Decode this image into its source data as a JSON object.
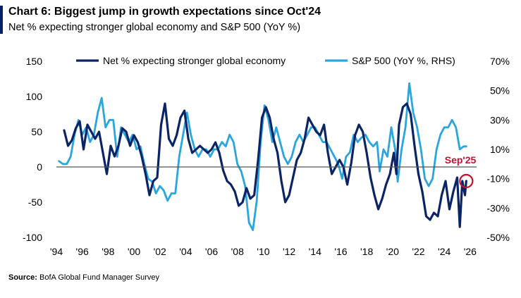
{
  "title": "Chart 6: Biggest jump in growth expectations since Oct'24",
  "subtitle": "Net % expecting stronger global economy and S&P 500 (YoY %)",
  "source_label": "Source:",
  "source_text": "BofA Global Fund Manager Survey",
  "annotation": {
    "label": "Sep'25",
    "x": 2025.7,
    "y": -20,
    "color": "#c8102e"
  },
  "colors": {
    "series1": "#0a2466",
    "series2": "#2aa6df",
    "zero_line": "#555555"
  },
  "chart_data": {
    "type": "line",
    "title": "Chart 6: Biggest jump in growth expectations since Oct'24",
    "xlim": [
      1994,
      2026.5
    ],
    "x_ticks": [
      1994,
      1996,
      1998,
      2000,
      2002,
      2004,
      2006,
      2008,
      2010,
      2012,
      2014,
      2016,
      2018,
      2020,
      2022,
      2024,
      2026
    ],
    "x_tick_labels": [
      "'94",
      "'96",
      "'98",
      "'00",
      "'02",
      "'04",
      "'06",
      "'08",
      "'10",
      "'12",
      "'14",
      "'16",
      "'18",
      "'20",
      "'22",
      "'24",
      "'26"
    ],
    "y_left": {
      "lim": [
        -100,
        150
      ],
      "ticks": [
        -100,
        -50,
        0,
        50,
        100,
        150
      ],
      "tick_labels": [
        "-100",
        "-50",
        "0",
        "50",
        "100",
        "150"
      ]
    },
    "y_right": {
      "lim": [
        -50,
        70
      ],
      "ticks": [
        -50,
        -30,
        -10,
        10,
        30,
        50,
        70
      ],
      "tick_labels": [
        "-50%",
        "-30%",
        "-10%",
        "10%",
        "30%",
        "50%",
        "70%"
      ]
    },
    "legend_position": "top",
    "series": [
      {
        "name": "Net % expecting stronger global economy",
        "axis": "left",
        "x": [
          1994.6,
          1994.9,
          1995.2,
          1995.5,
          1995.8,
          1996.1,
          1996.4,
          1996.7,
          1997.0,
          1997.3,
          1997.6,
          1997.9,
          1998.2,
          1998.5,
          1998.8,
          1999.1,
          1999.4,
          1999.7,
          2000.0,
          2000.3,
          2000.6,
          2000.9,
          2001.2,
          2001.5,
          2001.8,
          2002.1,
          2002.4,
          2002.7,
          2003.0,
          2003.3,
          2003.6,
          2003.9,
          2004.2,
          2004.5,
          2004.8,
          2005.1,
          2005.4,
          2005.7,
          2006.0,
          2006.3,
          2006.6,
          2006.9,
          2007.2,
          2007.5,
          2007.8,
          2008.1,
          2008.4,
          2008.7,
          2009.0,
          2009.3,
          2009.6,
          2009.9,
          2010.2,
          2010.5,
          2010.8,
          2011.1,
          2011.4,
          2011.7,
          2012.0,
          2012.3,
          2012.6,
          2012.9,
          2013.2,
          2013.5,
          2013.8,
          2014.1,
          2014.4,
          2014.7,
          2015.0,
          2015.3,
          2015.6,
          2015.9,
          2016.2,
          2016.5,
          2016.8,
          2017.1,
          2017.4,
          2017.7,
          2018.0,
          2018.3,
          2018.6,
          2018.9,
          2019.2,
          2019.5,
          2019.8,
          2020.1,
          2020.3,
          2020.5,
          2020.8,
          2021.1,
          2021.4,
          2021.7,
          2022.0,
          2022.3,
          2022.6,
          2022.9,
          2023.2,
          2023.5,
          2023.8,
          2024.1,
          2024.4,
          2024.7,
          2025.0,
          2025.2,
          2025.4,
          2025.6,
          2025.7
        ],
        "values": [
          52,
          30,
          38,
          55,
          65,
          25,
          60,
          50,
          40,
          50,
          20,
          -10,
          30,
          15,
          30,
          55,
          50,
          30,
          45,
          35,
          15,
          -10,
          -40,
          -20,
          -15,
          60,
          90,
          40,
          30,
          45,
          70,
          80,
          40,
          20,
          25,
          30,
          25,
          20,
          25,
          35,
          20,
          -5,
          -20,
          -25,
          -35,
          -55,
          -50,
          -30,
          -45,
          -40,
          10,
          70,
          85,
          70,
          40,
          20,
          -20,
          -50,
          -40,
          -15,
          10,
          20,
          40,
          70,
          60,
          50,
          45,
          60,
          20,
          -10,
          0,
          10,
          0,
          -25,
          5,
          45,
          60,
          50,
          20,
          -15,
          -40,
          -60,
          -45,
          -25,
          -10,
          20,
          -10,
          60,
          85,
          90,
          75,
          30,
          -10,
          -35,
          -70,
          -75,
          -65,
          -70,
          -40,
          -20,
          -60,
          -35,
          -15,
          -85,
          -20,
          -40,
          -20
        ]
      },
      {
        "name": "S&P 500 (YoY %, RHS)",
        "axis": "right",
        "x": [
          1994.2,
          1994.5,
          1994.8,
          1995.1,
          1995.4,
          1995.7,
          1996.0,
          1996.3,
          1996.6,
          1996.9,
          1997.2,
          1997.5,
          1997.8,
          1998.1,
          1998.4,
          1998.7,
          1999.0,
          1999.3,
          1999.6,
          1999.9,
          2000.2,
          2000.5,
          2000.8,
          2001.1,
          2001.4,
          2001.7,
          2002.0,
          2002.3,
          2002.6,
          2002.9,
          2003.2,
          2003.5,
          2003.8,
          2004.1,
          2004.4,
          2004.7,
          2005.0,
          2005.3,
          2005.6,
          2005.9,
          2006.2,
          2006.5,
          2006.8,
          2007.1,
          2007.4,
          2007.7,
          2008.0,
          2008.3,
          2008.6,
          2008.9,
          2009.2,
          2009.5,
          2009.8,
          2010.1,
          2010.4,
          2010.7,
          2011.0,
          2011.3,
          2011.6,
          2011.9,
          2012.2,
          2012.5,
          2012.8,
          2013.1,
          2013.4,
          2013.7,
          2014.0,
          2014.3,
          2014.6,
          2014.9,
          2015.2,
          2015.5,
          2015.8,
          2016.1,
          2016.4,
          2016.7,
          2017.0,
          2017.3,
          2017.6,
          2017.9,
          2018.2,
          2018.5,
          2018.8,
          2019.0,
          2019.3,
          2019.6,
          2019.9,
          2020.2,
          2020.4,
          2020.7,
          2021.0,
          2021.3,
          2021.6,
          2021.9,
          2022.2,
          2022.5,
          2022.8,
          2023.1,
          2023.4,
          2023.7,
          2024.0,
          2024.3,
          2024.6,
          2024.9,
          2025.2,
          2025.5,
          2025.7
        ],
        "values": [
          2,
          0,
          0,
          5,
          20,
          30,
          20,
          25,
          15,
          20,
          35,
          45,
          25,
          30,
          30,
          5,
          25,
          20,
          15,
          20,
          10,
          12,
          0,
          -10,
          -12,
          -20,
          -15,
          -18,
          -25,
          -20,
          -20,
          5,
          20,
          35,
          20,
          10,
          5,
          10,
          10,
          5,
          10,
          10,
          15,
          12,
          20,
          15,
          0,
          -5,
          -15,
          -40,
          -45,
          -25,
          15,
          40,
          30,
          15,
          25,
          15,
          5,
          0,
          5,
          15,
          20,
          15,
          20,
          25,
          25,
          20,
          15,
          15,
          10,
          5,
          0,
          -10,
          5,
          8,
          20,
          15,
          18,
          20,
          15,
          12,
          15,
          -5,
          10,
          5,
          25,
          10,
          -12,
          10,
          25,
          55,
          35,
          25,
          10,
          -10,
          -15,
          -10,
          10,
          20,
          25,
          25,
          30,
          25,
          10,
          12,
          12
        ]
      }
    ]
  }
}
